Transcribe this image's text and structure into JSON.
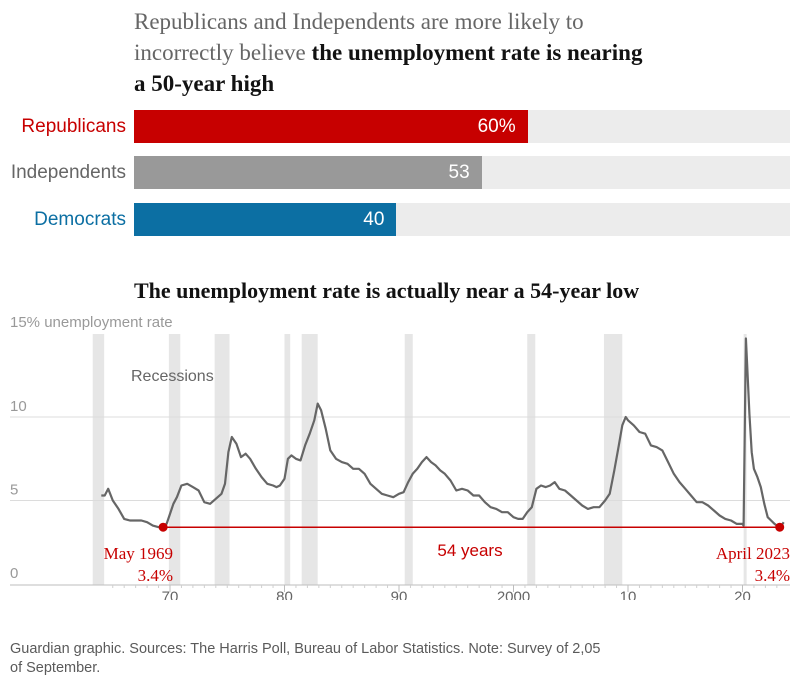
{
  "chart_data": [
    {
      "type": "bar",
      "orientation": "horizontal",
      "title_prefix": "Republicans and Independents are more likely to incorrectly believe ",
      "title_emphasis": "the unemployment rate is nearing a 50-year high",
      "categories": [
        "Republicans",
        "Independents",
        "Democrats"
      ],
      "values": [
        60,
        53,
        40
      ],
      "value_labels": [
        "60%",
        "53",
        "40"
      ],
      "xlim": [
        0,
        100
      ],
      "colors": [
        "#c70000",
        "#999999",
        "#0c6fa3"
      ],
      "label_colors": [
        "#c70000",
        "#666666",
        "#0c6fa3"
      ]
    },
    {
      "type": "line",
      "title": "The unemployment rate is actually near a 54-year low",
      "ylabel": "15% unemployment rate",
      "ylim": [
        0,
        15
      ],
      "yticks": [
        0,
        5,
        10
      ],
      "ytick_labels": [
        "0",
        "5",
        "10"
      ],
      "xlim": [
        1963,
        2024
      ],
      "xticks": [
        1970,
        1980,
        1990,
        2000,
        2010,
        2020
      ],
      "xtick_labels": [
        "70",
        "80",
        "90",
        "2000",
        "10",
        "20"
      ],
      "line_color": "#666666",
      "recession_label": "Recessions",
      "recessions": [
        [
          1963.25,
          1964.25
        ],
        [
          1969.9,
          1970.9
        ],
        [
          1973.9,
          1975.2
        ],
        [
          1980.0,
          1980.5
        ],
        [
          1981.5,
          1982.9
        ],
        [
          1990.5,
          1991.2
        ],
        [
          2001.2,
          2001.9
        ],
        [
          2007.9,
          2009.5
        ],
        [
          2020.1,
          2020.35
        ]
      ],
      "series": [
        {
          "x": [
            1964.0,
            1964.3,
            1964.6,
            1965.0,
            1965.5,
            1966.0,
            1966.5,
            1967.0,
            1967.5,
            1968.0,
            1968.5,
            1969.0,
            1969.3,
            1969.7,
            1970.0,
            1970.3,
            1970.6,
            1971.0,
            1971.5,
            1972.0,
            1972.5,
            1973.0,
            1973.5,
            1974.0,
            1974.5,
            1974.8,
            1975.1,
            1975.4,
            1975.8,
            1976.2,
            1976.6,
            1977.0,
            1977.5,
            1978.0,
            1978.5,
            1979.0,
            1979.3,
            1979.6,
            1980.0,
            1980.3,
            1980.6,
            1981.0,
            1981.4,
            1981.8,
            1982.2,
            1982.6,
            1982.9,
            1983.2,
            1983.6,
            1984.0,
            1984.5,
            1985.0,
            1985.5,
            1986.0,
            1986.5,
            1987.0,
            1987.5,
            1988.0,
            1988.5,
            1989.0,
            1989.5,
            1990.0,
            1990.4,
            1990.8,
            1991.2,
            1991.6,
            1992.0,
            1992.4,
            1992.8,
            1993.2,
            1993.6,
            1994.0,
            1994.5,
            1995.0,
            1995.5,
            1996.0,
            1996.5,
            1997.0,
            1997.5,
            1998.0,
            1998.5,
            1999.0,
            1999.5,
            2000.0,
            2000.4,
            2000.8,
            2001.2,
            2001.6,
            2002.0,
            2002.4,
            2002.8,
            2003.2,
            2003.6,
            2004.0,
            2004.5,
            2005.0,
            2005.5,
            2006.0,
            2006.5,
            2007.0,
            2007.5,
            2008.0,
            2008.4,
            2008.8,
            2009.2,
            2009.5,
            2009.8,
            2010.0,
            2010.5,
            2011.0,
            2011.5,
            2012.0,
            2012.5,
            2013.0,
            2013.5,
            2014.0,
            2014.5,
            2015.0,
            2015.5,
            2016.0,
            2016.5,
            2017.0,
            2017.5,
            2018.0,
            2018.5,
            2019.0,
            2019.5,
            2020.0,
            2020.1,
            2020.3,
            2020.4,
            2020.6,
            2020.8,
            2021.0,
            2021.3,
            2021.6,
            2021.9,
            2022.2,
            2022.5,
            2022.8,
            2023.0,
            2023.3,
            2023.6
          ],
          "y": [
            5.3,
            5.3,
            5.7,
            5.0,
            4.5,
            3.9,
            3.8,
            3.8,
            3.8,
            3.7,
            3.5,
            3.4,
            3.5,
            3.6,
            4.2,
            4.8,
            5.2,
            5.9,
            6.0,
            5.8,
            5.6,
            4.9,
            4.8,
            5.1,
            5.4,
            6.0,
            7.9,
            8.8,
            8.4,
            7.6,
            7.8,
            7.5,
            6.9,
            6.4,
            6.0,
            5.9,
            5.8,
            5.9,
            6.3,
            7.5,
            7.7,
            7.5,
            7.4,
            8.3,
            9.0,
            9.8,
            10.8,
            10.4,
            9.3,
            8.0,
            7.5,
            7.3,
            7.2,
            6.9,
            6.9,
            6.6,
            6.0,
            5.7,
            5.4,
            5.3,
            5.2,
            5.4,
            5.5,
            6.1,
            6.6,
            6.9,
            7.3,
            7.6,
            7.3,
            7.1,
            6.8,
            6.6,
            6.2,
            5.6,
            5.7,
            5.6,
            5.3,
            5.3,
            4.9,
            4.6,
            4.5,
            4.3,
            4.3,
            4.0,
            3.9,
            3.9,
            4.3,
            4.6,
            5.7,
            5.9,
            5.8,
            5.9,
            6.1,
            5.7,
            5.6,
            5.3,
            5.0,
            4.7,
            4.5,
            4.6,
            4.6,
            5.0,
            5.4,
            6.8,
            8.3,
            9.5,
            10.0,
            9.8,
            9.5,
            9.1,
            9.0,
            8.3,
            8.2,
            8.0,
            7.3,
            6.6,
            6.1,
            5.7,
            5.3,
            4.9,
            4.9,
            4.7,
            4.4,
            4.1,
            3.9,
            3.8,
            3.6,
            3.6,
            3.5,
            14.7,
            13.2,
            10.2,
            7.9,
            6.9,
            6.4,
            5.8,
            4.8,
            4.0,
            3.8,
            3.6,
            3.5,
            3.4,
            3.7
          ]
        }
      ],
      "annotations": [
        {
          "label": "May 1969",
          "value_label": "3.4%",
          "x": 1969.4,
          "y": 3.4
        },
        {
          "label": "April 2023",
          "value_label": "3.4%",
          "x": 2023.25,
          "y": 3.4
        },
        {
          "label": "54 years"
        }
      ]
    }
  ],
  "footer": {
    "text": "Guardian graphic. Sources: The Harris Poll, Bureau of Labor Statistics. Note: Survey of 2,05",
    "text2": "of September."
  }
}
